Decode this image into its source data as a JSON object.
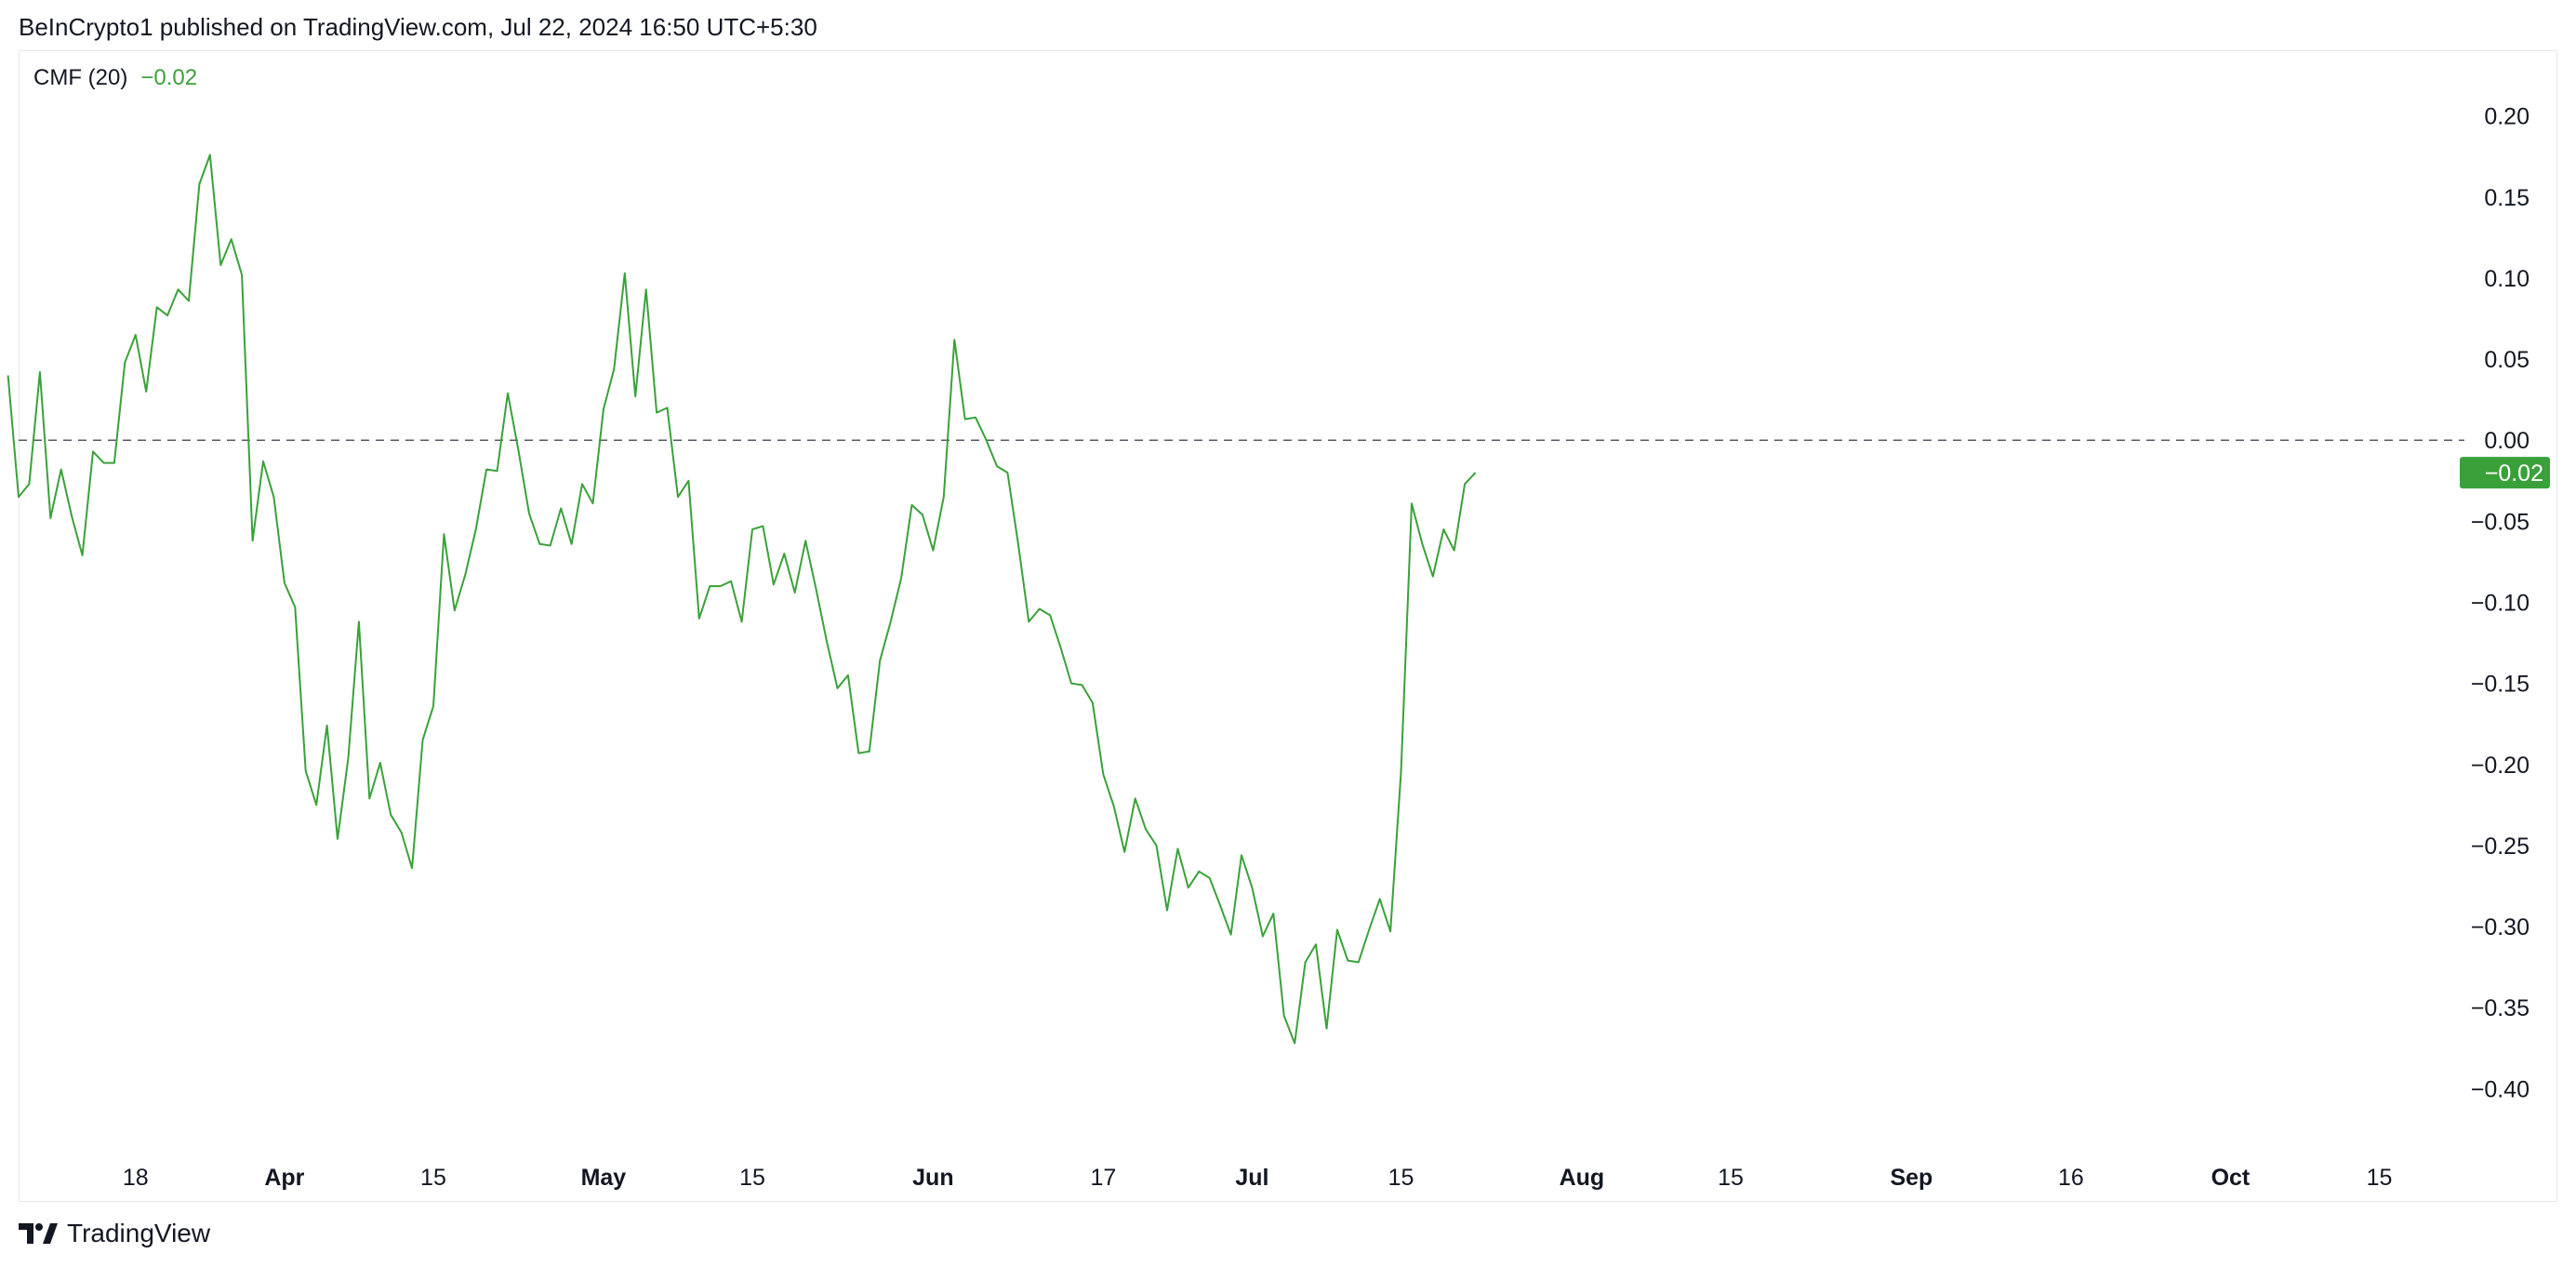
{
  "header": {
    "published": "BeInCrypto1 published on TradingView.com, Jul 22, 2024 16:50 UTC+5:30"
  },
  "legend": {
    "indicator": "CMF (20)",
    "value": "−0.02"
  },
  "footer": {
    "brand": "TradingView"
  },
  "colors": {
    "line": "#3aa13a",
    "badge": "#3aa13a",
    "zero_line": "#555a66",
    "text": "#131722",
    "border": "#e6e8ee"
  },
  "chart_data": {
    "type": "line",
    "title": "",
    "xlabel": "",
    "ylabel": "",
    "ylim": [
      -0.44,
      0.24
    ],
    "y_ticks": [
      0.2,
      0.15,
      0.1,
      0.05,
      0.0,
      -0.05,
      -0.1,
      -0.15,
      -0.2,
      -0.25,
      -0.3,
      -0.35,
      -0.4
    ],
    "y_tick_labels": [
      "0.20",
      "0.15",
      "0.10",
      "0.05",
      "0.00",
      "−0.05",
      "−0.10",
      "−0.15",
      "−0.20",
      "−0.25",
      "−0.30",
      "−0.35",
      "−0.40"
    ],
    "x_range": [
      "2024-03-07",
      "2024-10-23"
    ],
    "x_ticks": [
      {
        "date": "2024-03-18",
        "label": "18",
        "bold": false
      },
      {
        "date": "2024-04-01",
        "label": "Apr",
        "bold": true
      },
      {
        "date": "2024-04-15",
        "label": "15",
        "bold": false
      },
      {
        "date": "2024-05-01",
        "label": "May",
        "bold": true
      },
      {
        "date": "2024-05-15",
        "label": "15",
        "bold": false
      },
      {
        "date": "2024-06-01",
        "label": "Jun",
        "bold": true
      },
      {
        "date": "2024-06-17",
        "label": "17",
        "bold": false
      },
      {
        "date": "2024-07-01",
        "label": "Jul",
        "bold": true
      },
      {
        "date": "2024-07-15",
        "label": "15",
        "bold": false
      },
      {
        "date": "2024-08-01",
        "label": "Aug",
        "bold": true
      },
      {
        "date": "2024-08-15",
        "label": "15",
        "bold": false
      },
      {
        "date": "2024-09-01",
        "label": "Sep",
        "bold": true
      },
      {
        "date": "2024-09-16",
        "label": "16",
        "bold": false
      },
      {
        "date": "2024-10-01",
        "label": "Oct",
        "bold": true
      },
      {
        "date": "2024-10-15",
        "label": "15",
        "bold": false
      }
    ],
    "reference_line": {
      "y": 0.0,
      "style": "dashed"
    },
    "last_value_badge": {
      "value": -0.02,
      "label": "−0.02"
    },
    "grid": false,
    "series": [
      {
        "name": "CMF (20)",
        "x": [
          "2024-03-06",
          "2024-03-07",
          "2024-03-08",
          "2024-03-09",
          "2024-03-10",
          "2024-03-11",
          "2024-03-12",
          "2024-03-13",
          "2024-03-14",
          "2024-03-15",
          "2024-03-16",
          "2024-03-17",
          "2024-03-18",
          "2024-03-19",
          "2024-03-20",
          "2024-03-21",
          "2024-03-22",
          "2024-03-23",
          "2024-03-24",
          "2024-03-25",
          "2024-03-26",
          "2024-03-27",
          "2024-03-28",
          "2024-03-29",
          "2024-03-30",
          "2024-03-31",
          "2024-04-01",
          "2024-04-02",
          "2024-04-03",
          "2024-04-04",
          "2024-04-05",
          "2024-04-06",
          "2024-04-07",
          "2024-04-08",
          "2024-04-09",
          "2024-04-10",
          "2024-04-11",
          "2024-04-12",
          "2024-04-13",
          "2024-04-14",
          "2024-04-15",
          "2024-04-16",
          "2024-04-17",
          "2024-04-18",
          "2024-04-19",
          "2024-04-20",
          "2024-04-21",
          "2024-04-22",
          "2024-04-23",
          "2024-04-24",
          "2024-04-25",
          "2024-04-26",
          "2024-04-27",
          "2024-04-28",
          "2024-04-29",
          "2024-04-30",
          "2024-05-01",
          "2024-05-02",
          "2024-05-03",
          "2024-05-04",
          "2024-05-05",
          "2024-05-06",
          "2024-05-07",
          "2024-05-08",
          "2024-05-09",
          "2024-05-10",
          "2024-05-11",
          "2024-05-12",
          "2024-05-13",
          "2024-05-14",
          "2024-05-15",
          "2024-05-16",
          "2024-05-17",
          "2024-05-18",
          "2024-05-19",
          "2024-05-20",
          "2024-05-21",
          "2024-05-22",
          "2024-05-23",
          "2024-05-24",
          "2024-05-25",
          "2024-05-26",
          "2024-05-27",
          "2024-05-28",
          "2024-05-29",
          "2024-05-30",
          "2024-05-31",
          "2024-06-01",
          "2024-06-02",
          "2024-06-03",
          "2024-06-04",
          "2024-06-05",
          "2024-06-06",
          "2024-06-07",
          "2024-06-08",
          "2024-06-09",
          "2024-06-10",
          "2024-06-11",
          "2024-06-12",
          "2024-06-13",
          "2024-06-14",
          "2024-06-15",
          "2024-06-16",
          "2024-06-17",
          "2024-06-18",
          "2024-06-19",
          "2024-06-20",
          "2024-06-21",
          "2024-06-22",
          "2024-06-23",
          "2024-06-24",
          "2024-06-25",
          "2024-06-26",
          "2024-06-27",
          "2024-06-28",
          "2024-06-29",
          "2024-06-30",
          "2024-07-01",
          "2024-07-02",
          "2024-07-03",
          "2024-07-04",
          "2024-07-05",
          "2024-07-06",
          "2024-07-07",
          "2024-07-08",
          "2024-07-09",
          "2024-07-10",
          "2024-07-11",
          "2024-07-12",
          "2024-07-13",
          "2024-07-14",
          "2024-07-15",
          "2024-07-16",
          "2024-07-17",
          "2024-07-18",
          "2024-07-19",
          "2024-07-20",
          "2024-07-21",
          "2024-07-22"
        ],
        "values": [
          0.04,
          -0.035,
          -0.027,
          0.042,
          -0.048,
          -0.018,
          -0.047,
          -0.071,
          -0.007,
          -0.014,
          -0.014,
          0.048,
          0.065,
          0.03,
          0.082,
          0.077,
          0.093,
          0.086,
          0.158,
          0.176,
          0.108,
          0.124,
          0.102,
          -0.062,
          -0.013,
          -0.035,
          -0.088,
          -0.103,
          -0.204,
          -0.225,
          -0.176,
          -0.246,
          -0.196,
          -0.112,
          -0.221,
          -0.199,
          -0.231,
          -0.242,
          -0.264,
          -0.185,
          -0.164,
          -0.058,
          -0.105,
          -0.083,
          -0.055,
          -0.018,
          -0.019,
          0.029,
          -0.006,
          -0.045,
          -0.064,
          -0.065,
          -0.042,
          -0.064,
          -0.027,
          -0.039,
          0.019,
          0.044,
          0.103,
          0.027,
          0.093,
          0.017,
          0.02,
          -0.035,
          -0.025,
          -0.11,
          -0.09,
          -0.09,
          -0.087,
          -0.112,
          -0.055,
          -0.053,
          -0.089,
          -0.07,
          -0.094,
          -0.062,
          -0.092,
          -0.124,
          -0.153,
          -0.145,
          -0.193,
          -0.192,
          -0.136,
          -0.112,
          -0.085,
          -0.04,
          -0.046,
          -0.068,
          -0.035,
          0.062,
          0.013,
          0.014,
          0.0,
          -0.016,
          -0.02,
          -0.064,
          -0.112,
          -0.104,
          -0.108,
          -0.128,
          -0.15,
          -0.151,
          -0.162,
          -0.206,
          -0.226,
          -0.254,
          -0.221,
          -0.24,
          -0.25,
          -0.29,
          -0.252,
          -0.276,
          -0.266,
          -0.27,
          -0.287,
          -0.305,
          -0.256,
          -0.276,
          -0.306,
          -0.292,
          -0.355,
          -0.372,
          -0.322,
          -0.311,
          -0.363,
          -0.302,
          -0.321,
          -0.322,
          -0.302,
          -0.283,
          -0.303,
          -0.205,
          -0.039,
          -0.064,
          -0.084,
          -0.055,
          -0.068,
          -0.027,
          -0.02
        ]
      }
    ]
  }
}
